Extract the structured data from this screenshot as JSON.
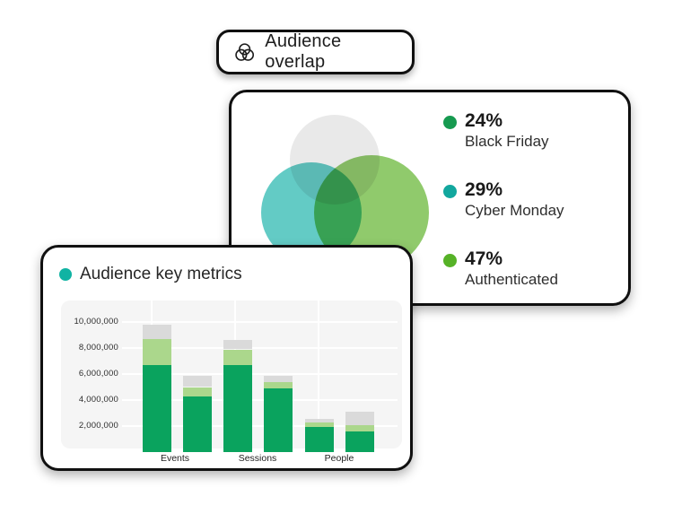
{
  "badge": {
    "label": "Audience overlap",
    "icon": "venn-icon"
  },
  "overlap_card": {
    "stats": [
      {
        "value": "24%",
        "label": "Black Friday",
        "dot_color": "#169a50"
      },
      {
        "value": "29%",
        "label": "Cyber Monday",
        "dot_color": "#12a79e"
      },
      {
        "value": "47%",
        "label": "Authenticated",
        "dot_color": "#56b227"
      }
    ],
    "venn_circles": [
      {
        "name": "gray",
        "color": "#e9e9e9"
      },
      {
        "name": "teal",
        "color": "#63cbc5"
      },
      {
        "name": "green",
        "color": "#90ca6c"
      }
    ]
  },
  "metrics_card": {
    "title": "Audience key metrics",
    "title_dot_color": "#10b3a3"
  },
  "chart_data": [
    {
      "type": "bar",
      "stacked": true,
      "title": "Audience key metrics",
      "categories": [
        "Events",
        "Sessions",
        "People"
      ],
      "bars": [
        {
          "category": "Events",
          "segments": [
            6700000,
            2000000,
            1100000
          ]
        },
        {
          "category": "Events",
          "segments": [
            4300000,
            700000,
            800000
          ]
        },
        {
          "category": "Sessions",
          "segments": [
            6700000,
            1200000,
            700000
          ]
        },
        {
          "category": "Sessions",
          "segments": [
            4900000,
            500000,
            450000
          ]
        },
        {
          "category": "People",
          "segments": [
            1900000,
            350000,
            300000
          ]
        },
        {
          "category": "People",
          "segments": [
            1600000,
            500000,
            1000000
          ]
        }
      ],
      "segment_colors": [
        "#0aa35e",
        "#abd78c",
        "#dadada"
      ],
      "yticks": [
        "2,000,000",
        "4,000,000",
        "6,000,000",
        "8,000,000",
        "10,000,000"
      ],
      "ylim": [
        0,
        11500000
      ],
      "grid": true,
      "xlabel": "",
      "ylabel": ""
    },
    {
      "type": "venn",
      "title": "Audience overlap",
      "slices": [
        {
          "label": "Black Friday",
          "value_pct": 24
        },
        {
          "label": "Cyber Monday",
          "value_pct": 29
        },
        {
          "label": "Authenticated",
          "value_pct": 47
        }
      ]
    }
  ]
}
